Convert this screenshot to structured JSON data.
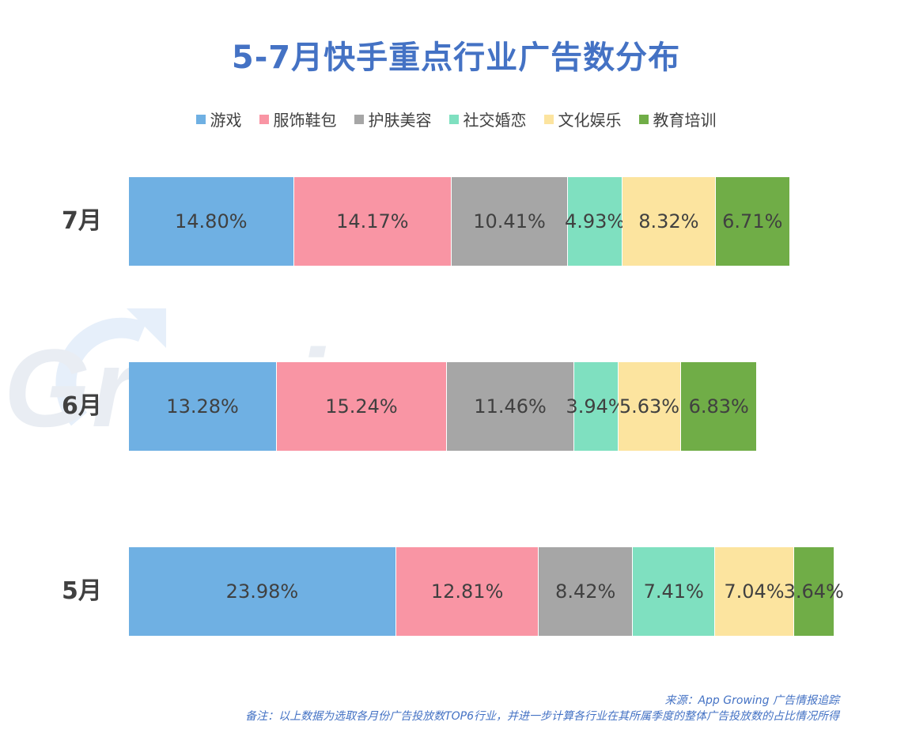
{
  "title": "5-7月快手重点行业广告数分布",
  "legend": [
    {
      "label": "游戏",
      "color": "#6FB0E3"
    },
    {
      "label": "服饰鞋包",
      "color": "#F995A4"
    },
    {
      "label": "护肤美容",
      "color": "#A6A6A6"
    },
    {
      "label": "社交婚恋",
      "color": "#7FE0C0"
    },
    {
      "label": "文化娱乐",
      "color": "#FCE49F"
    },
    {
      "label": "教育培训",
      "color": "#70AD47"
    }
  ],
  "watermark": "Growing",
  "chart_data": {
    "type": "bar",
    "orientation": "horizontal",
    "stacked": true,
    "title": "5-7月快手重点行业广告数分布",
    "categories": [
      "7月",
      "6月",
      "5月"
    ],
    "series": [
      {
        "name": "游戏",
        "values": [
          14.8,
          13.28,
          23.98
        ],
        "labels": [
          "14.80%",
          "13.28%",
          "23.98%"
        ]
      },
      {
        "name": "服饰鞋包",
        "values": [
          14.17,
          15.24,
          12.81
        ],
        "labels": [
          "14.17%",
          "15.24%",
          "12.81%"
        ]
      },
      {
        "name": "护肤美容",
        "values": [
          10.41,
          11.46,
          8.42
        ],
        "labels": [
          "10.41%",
          "11.46%",
          "8.42%"
        ]
      },
      {
        "name": "社交婚恋",
        "values": [
          4.93,
          3.94,
          7.41
        ],
        "labels": [
          "4.93%",
          "3.94%",
          "7.41%"
        ]
      },
      {
        "name": "文化娱乐",
        "values": [
          8.32,
          5.63,
          7.04
        ],
        "labels": [
          "8.32%",
          "5.63%",
          "7.04%"
        ]
      },
      {
        "name": "教育培训",
        "values": [
          6.71,
          6.83,
          3.64
        ],
        "labels": [
          "6.71%",
          "6.83%",
          "3.64%"
        ]
      }
    ],
    "legend_position": "top",
    "grid": false
  },
  "footer": {
    "source": "来源：App Growing 广告情报追踪",
    "note": "备注：以上数据为选取各月份广告投放数TOP6行业，并进一步计算各行业在其所属季度的整体广告投放数的占比情况所得"
  }
}
